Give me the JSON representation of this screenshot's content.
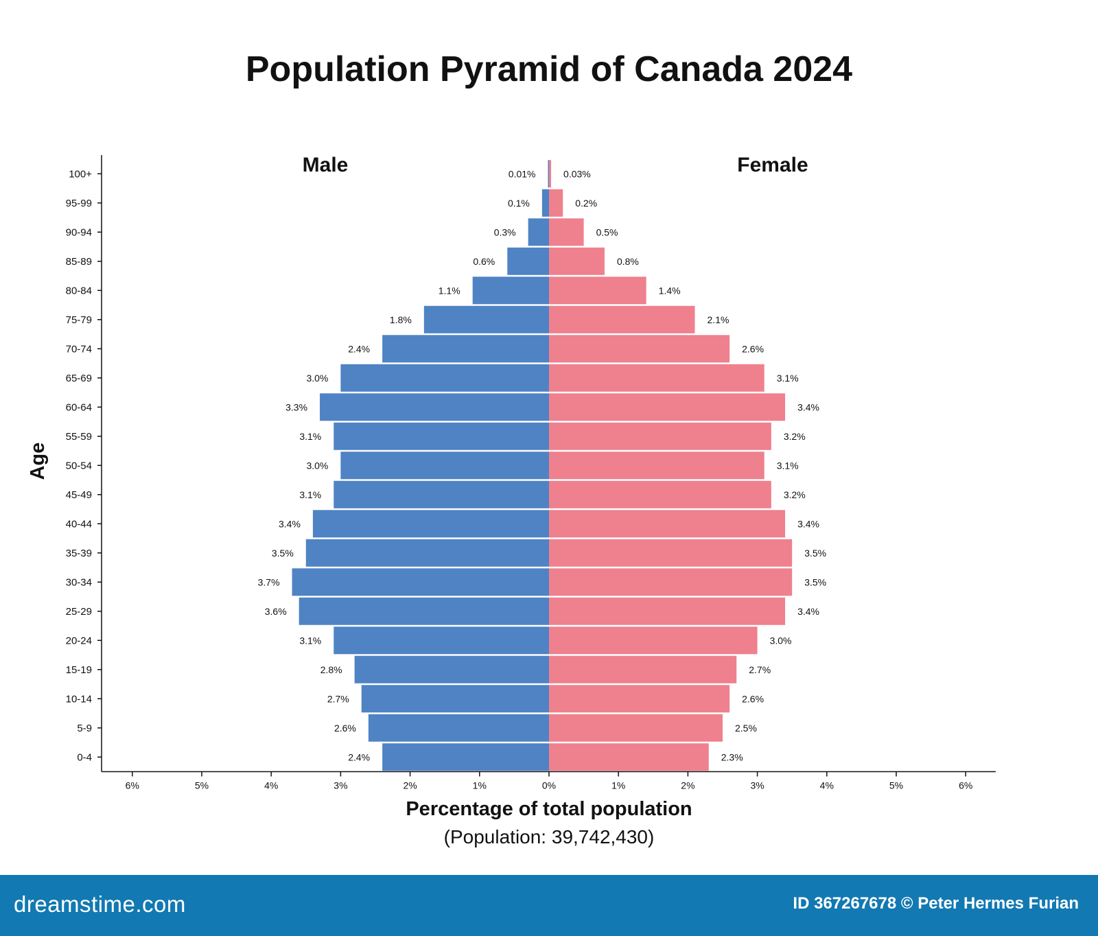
{
  "colors": {
    "male": "#4f83c4",
    "female": "#ef808d",
    "axis": "#111111",
    "footer_bg": "#1279b2"
  },
  "footer": {
    "brand": "dreamstime.com",
    "credit": "ID 367267678 © Peter Hermes Furian"
  },
  "chart_data": {
    "type": "bar",
    "orientation": "horizontal-pyramid",
    "title": "Population Pyramid of Canada 2024",
    "xlabel": "Percentage of total population",
    "xlabel_sub": "(Population: 39,742,430)",
    "ylabel": "Age",
    "xlim": [
      -6,
      6
    ],
    "x_ticks": [
      -6,
      -5,
      -4,
      -3,
      -2,
      -1,
      0,
      1,
      2,
      3,
      4,
      5,
      6
    ],
    "x_tick_labels": [
      "6%",
      "5%",
      "4%",
      "3%",
      "2%",
      "1%",
      "0%",
      "1%",
      "2%",
      "3%",
      "4%",
      "5%",
      "6%"
    ],
    "grid": false,
    "legend": "side labels above bars",
    "categories": [
      "100+",
      "95-99",
      "90-94",
      "85-89",
      "80-84",
      "75-79",
      "70-74",
      "65-69",
      "60-64",
      "55-59",
      "50-54",
      "45-49",
      "40-44",
      "35-39",
      "30-34",
      "25-29",
      "20-24",
      "15-19",
      "10-14",
      "5-9",
      "0-4"
    ],
    "series": [
      {
        "name": "Male",
        "values": [
          0.01,
          0.1,
          0.3,
          0.6,
          1.1,
          1.8,
          2.4,
          3.0,
          3.3,
          3.1,
          3.0,
          3.1,
          3.4,
          3.5,
          3.7,
          3.6,
          3.1,
          2.8,
          2.7,
          2.6,
          2.4
        ],
        "labels": [
          "0.01%",
          "0.1%",
          "0.3%",
          "0.6%",
          "1.1%",
          "1.8%",
          "2.4%",
          "3.0%",
          "3.3%",
          "3.1%",
          "3.0%",
          "3.1%",
          "3.4%",
          "3.5%",
          "3.7%",
          "3.6%",
          "3.1%",
          "2.8%",
          "2.7%",
          "2.6%",
          "2.4%"
        ]
      },
      {
        "name": "Female",
        "values": [
          0.03,
          0.2,
          0.5,
          0.8,
          1.4,
          2.1,
          2.6,
          3.1,
          3.4,
          3.2,
          3.1,
          3.2,
          3.4,
          3.5,
          3.5,
          3.4,
          3.0,
          2.7,
          2.6,
          2.5,
          2.3
        ],
        "labels": [
          "0.03%",
          "0.2%",
          "0.5%",
          "0.8%",
          "1.4%",
          "2.1%",
          "2.6%",
          "3.1%",
          "3.4%",
          "3.2%",
          "3.1%",
          "3.2%",
          "3.4%",
          "3.5%",
          "3.5%",
          "3.4%",
          "3.0%",
          "2.7%",
          "2.6%",
          "2.5%",
          "2.3%"
        ]
      }
    ]
  }
}
